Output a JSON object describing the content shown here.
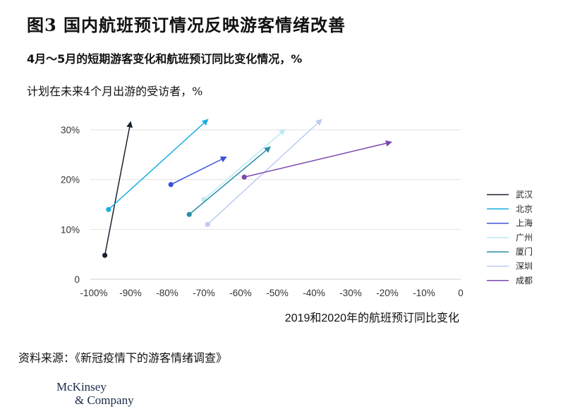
{
  "figure": {
    "title": "图3 国内航班预订情况反映游客情绪改善",
    "subtitle": "4月～5月的短期游客变化和航班预订同比变化情况，%",
    "y_axis_label": "计划在未来4个月出游的受访者，%",
    "source": "资料来源：《新冠疫情下的游客情绪调查》",
    "logo_line1": "McKinsey",
    "logo_line2": "& Company"
  },
  "chart_data": {
    "type": "scatter",
    "title": "",
    "xlabel": "2019和2020年的航班预订同比变化",
    "ylabel": "计划在未来4个月出游的受访者，%",
    "xlim": [
      -100,
      0
    ],
    "ylim": [
      0,
      30
    ],
    "x_ticks": [
      -100,
      -90,
      -80,
      -70,
      -60,
      -50,
      -40,
      -30,
      -20,
      -10,
      0
    ],
    "x_tick_labels": [
      "-100%",
      "-90%",
      "-80%",
      "-70%",
      "-60%",
      "-50%",
      "-40%",
      "-30%",
      "-20%",
      "-10%",
      "0"
    ],
    "y_ticks": [
      0,
      10,
      20,
      30
    ],
    "y_tick_labels": [
      "0",
      "10%",
      "20%",
      "30%"
    ],
    "grid": "horizontal",
    "legend_position": "right",
    "series": [
      {
        "name": "武汉",
        "color": "#1b2330",
        "start": [
          -97,
          4.8
        ],
        "end": [
          -90,
          31.5
        ]
      },
      {
        "name": "北京",
        "color": "#1aaee0",
        "start": [
          -96,
          14
        ],
        "end": [
          -69,
          32
        ]
      },
      {
        "name": "上海",
        "color": "#3a53d6",
        "start": [
          -79,
          19
        ],
        "end": [
          -64,
          24.5
        ]
      },
      {
        "name": "广州",
        "color": "#bdeaf3",
        "start": [
          -70,
          16
        ],
        "end": [
          -48,
          30
        ]
      },
      {
        "name": "厦门",
        "color": "#2a8fa6",
        "start": [
          -74,
          13
        ],
        "end": [
          -52,
          26.5
        ]
      },
      {
        "name": "深圳",
        "color": "#bccbf2",
        "start": [
          -69,
          11
        ],
        "end": [
          -38,
          32
        ]
      },
      {
        "name": "成都",
        "color": "#7c46b0",
        "start": [
          -59,
          20.5
        ],
        "end": [
          -19,
          27.5
        ]
      }
    ]
  }
}
